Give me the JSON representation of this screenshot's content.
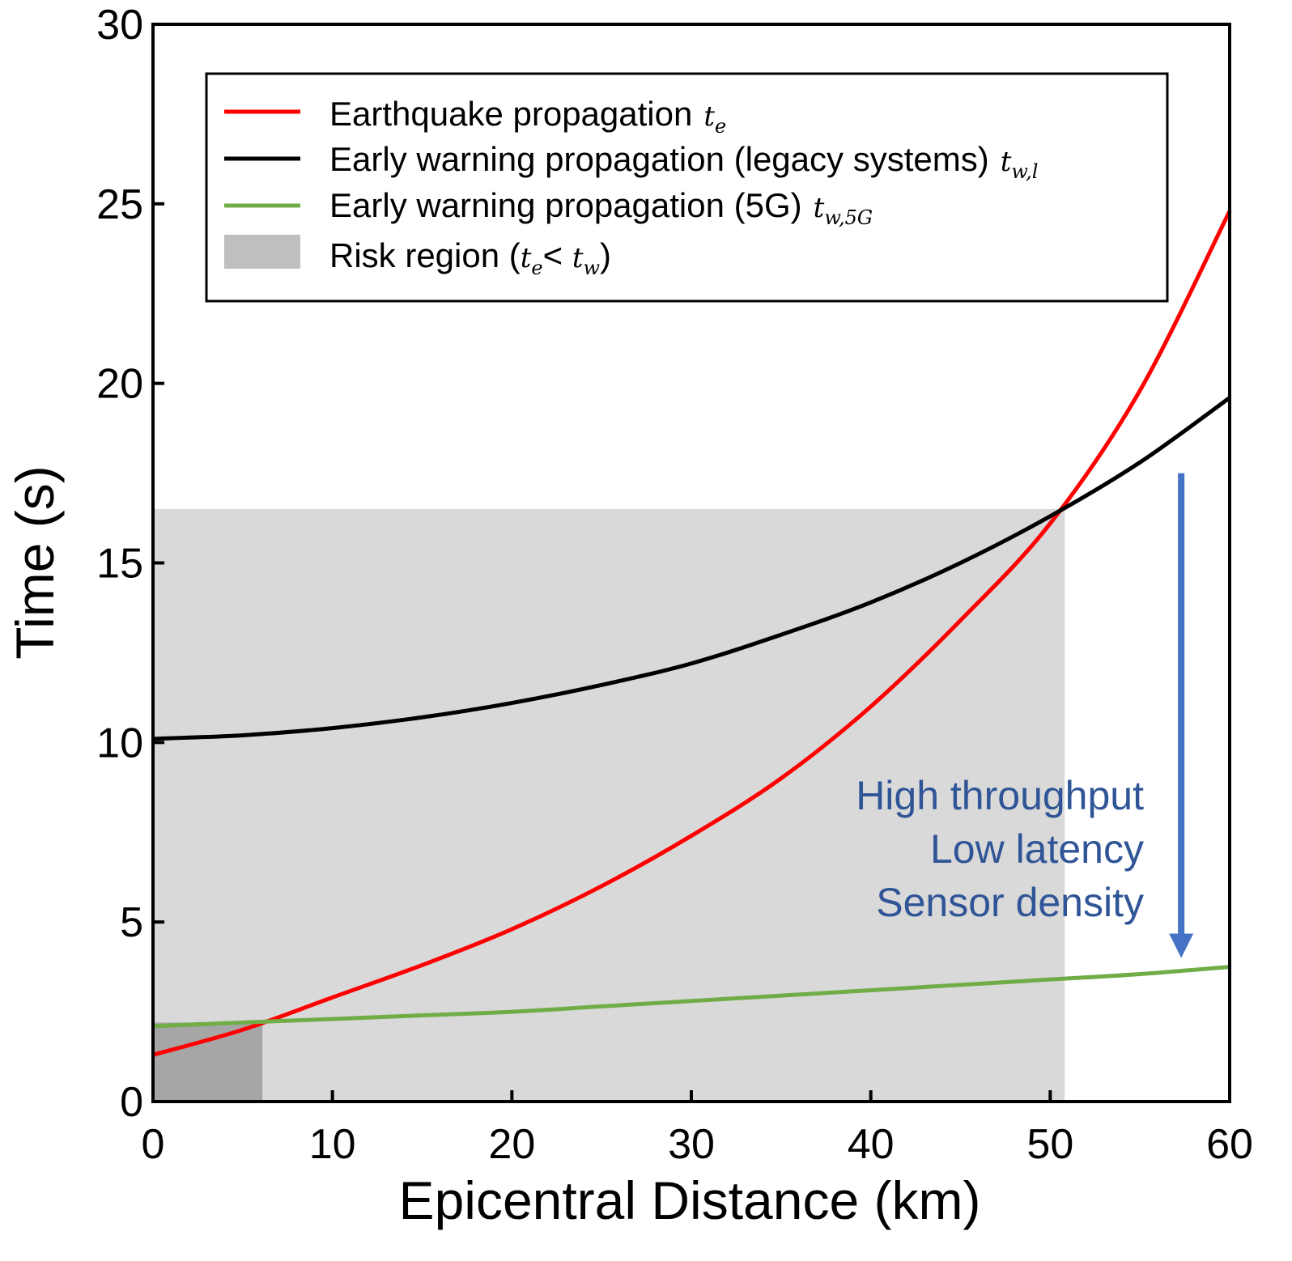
{
  "chart_data": {
    "type": "line",
    "title": "",
    "xlabel": "Epicentral Distance (km)",
    "ylabel": "Time (s)",
    "xlim": [
      0,
      60
    ],
    "ylim": [
      0,
      30
    ],
    "xticks": [
      "0",
      "10",
      "20",
      "30",
      "40",
      "50",
      "60"
    ],
    "yticks": [
      "0",
      "5",
      "10",
      "15",
      "20",
      "25",
      "30"
    ],
    "grid": false,
    "legend_position": "top",
    "series": [
      {
        "name": "Earthquake propagation",
        "symbol_main": "t",
        "symbol_sub": "e",
        "color": "#ff0000",
        "x": [
          0,
          5,
          10,
          15,
          20,
          25,
          30,
          35,
          40,
          45,
          50,
          55,
          60
        ],
        "y": [
          1.3,
          2.0,
          2.9,
          3.8,
          4.8,
          6.0,
          7.4,
          9.0,
          11.0,
          13.4,
          16.1,
          19.8,
          24.8
        ]
      },
      {
        "name": "Early warning propagation (legacy systems)",
        "symbol_main": "t",
        "symbol_sub": "w,l",
        "color": "#000000",
        "x": [
          0,
          5,
          10,
          15,
          20,
          25,
          30,
          35,
          40,
          45,
          50,
          55,
          60
        ],
        "y": [
          10.1,
          10.2,
          10.4,
          10.7,
          11.1,
          11.6,
          12.2,
          13.0,
          13.9,
          15.0,
          16.3,
          17.8,
          19.6
        ]
      },
      {
        "name": "Early warning propagation (5G)",
        "symbol_main": "t",
        "symbol_sub": "w,5G",
        "color": "#70ad47",
        "x": [
          0,
          5,
          10,
          15,
          20,
          25,
          30,
          35,
          40,
          45,
          50,
          55,
          60
        ],
        "y": [
          2.1,
          2.2,
          2.3,
          2.4,
          2.5,
          2.65,
          2.8,
          2.95,
          3.1,
          3.25,
          3.4,
          3.55,
          3.75
        ]
      }
    ],
    "risk_regions": [
      {
        "x_range": [
          0,
          50.8
        ],
        "y_range": [
          0,
          16.5
        ],
        "color": "#d9d9d9"
      },
      {
        "x_range": [
          0,
          6.1
        ],
        "y_range": [
          0,
          2.2
        ],
        "color": "#a6a6a6"
      }
    ],
    "legend_risk": {
      "label": "Risk region (",
      "sym1_main": "t",
      "sym1_sub": "e",
      "lt": "< ",
      "sym2_main": "t",
      "sym2_sub": "w",
      "close": ")",
      "color": "#bfbfbf"
    },
    "annotation": {
      "lines": [
        "High throughput",
        "Low latency",
        "Sensor density"
      ],
      "color": "#2f5597",
      "arrow_color": "#4472c4",
      "arrow_from_y": 17.5,
      "arrow_to_y": 4.0,
      "arrow_x": 57.3
    }
  }
}
